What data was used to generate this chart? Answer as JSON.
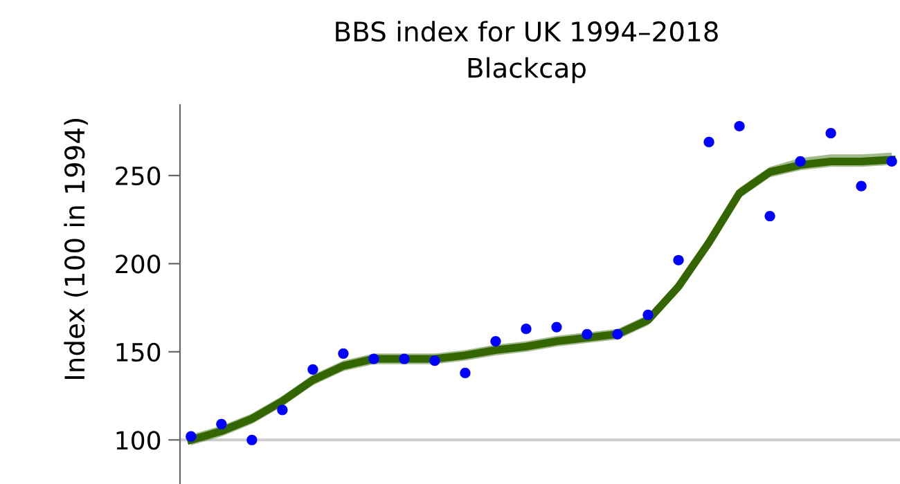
{
  "chart_data": {
    "type": "scatter",
    "title": "BBS index for UK 1994–2018",
    "subtitle": "Blackcap",
    "ylabel": "Index (100 in 1994)",
    "categories": [
      null,
      null,
      null,
      null,
      null,
      null,
      null,
      null,
      null,
      null,
      null,
      null,
      null,
      null,
      null,
      null,
      null,
      null,
      null,
      null,
      null,
      null,
      null,
      null
    ],
    "series": [
      {
        "type": "line",
        "color": "#336600",
        "values": [
          100,
          105,
          112,
          122,
          134,
          142,
          146,
          146,
          146,
          148,
          151,
          153,
          156,
          158,
          160,
          168,
          187,
          212,
          240,
          252,
          256,
          258,
          258,
          259
        ],
        "lower": [
          97,
          102,
          109,
          119,
          131,
          139,
          143,
          143,
          143,
          145,
          148,
          150,
          153,
          155,
          157,
          165,
          184,
          209,
          237,
          249,
          253,
          255,
          255,
          256
        ],
        "upper": [
          103,
          108,
          115,
          125,
          137,
          145,
          149,
          149,
          149,
          151,
          154,
          156,
          159,
          161,
          163,
          171,
          190,
          215,
          243,
          255,
          260,
          262,
          262,
          263
        ]
      },
      {
        "color": "#0000ff",
        "marker": "circle",
        "values": [
          102,
          109,
          100,
          117,
          140,
          149,
          146,
          146,
          145,
          138,
          156,
          163,
          164,
          160,
          160,
          171,
          202,
          269,
          278,
          227,
          258,
          274,
          244,
          258
        ]
      }
    ],
    "ylim": [
      75,
      290
    ],
    "yticks": [
      100,
      150,
      200,
      250
    ],
    "ref_lines": [
      {
        "axis": "y",
        "value": 100,
        "color": "#cccccc"
      }
    ],
    "tick_labels": "y",
    "grid": false,
    "legend": false
  }
}
